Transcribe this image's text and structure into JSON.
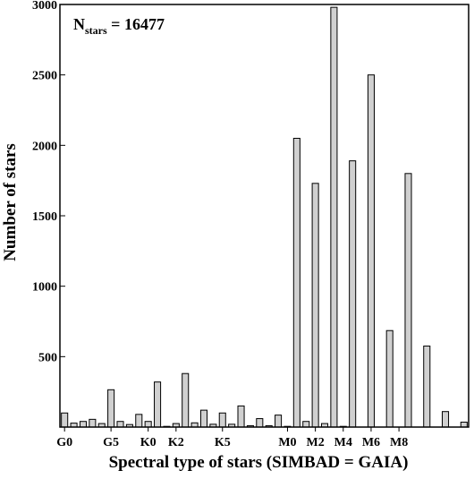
{
  "chart_data": {
    "type": "bar",
    "title": "",
    "annotation": {
      "prefix": "N",
      "subscript": "stars",
      "equals": " = ",
      "value": "16477"
    },
    "xlabel": "Spectral type of stars (SIMBAD = GAIA)",
    "ylabel": "Number of stars",
    "ylim": [
      0,
      3000
    ],
    "y_ticks": [
      500,
      1000,
      1500,
      2000,
      2500,
      3000
    ],
    "grid": false,
    "legend": "none",
    "bar_color": "#d0d0d0",
    "bar_edge_color": "#000000",
    "x_tick_labels": [
      {
        "label": "G0",
        "category_index": 0
      },
      {
        "label": "G5",
        "category_index": 5
      },
      {
        "label": "K0",
        "category_index": 9
      },
      {
        "label": "K2",
        "category_index": 12
      },
      {
        "label": "K5",
        "category_index": 17
      },
      {
        "label": "M0",
        "category_index": 24
      },
      {
        "label": "M2",
        "category_index": 27
      },
      {
        "label": "M4",
        "category_index": 30
      },
      {
        "label": "M6",
        "category_index": 33
      },
      {
        "label": "M8",
        "category_index": 36
      }
    ],
    "values": [
      100,
      28,
      40,
      55,
      25,
      265,
      40,
      18,
      90,
      40,
      320,
      5,
      25,
      380,
      30,
      120,
      20,
      100,
      20,
      150,
      10,
      60,
      10,
      85,
      5,
      2050,
      40,
      1730,
      25,
      2980,
      5,
      1890,
      0,
      2500,
      0,
      685,
      0,
      1800,
      0,
      575,
      0,
      110,
      0,
      35
    ]
  }
}
